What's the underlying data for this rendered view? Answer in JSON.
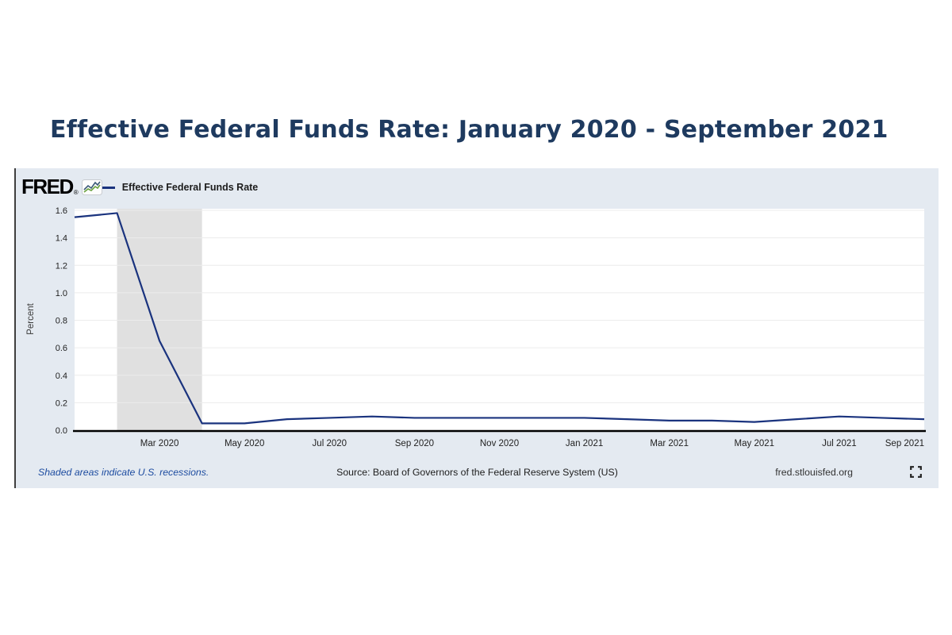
{
  "page": {
    "title": "Effective Federal Funds Rate: January 2020 - September 2021"
  },
  "brand": {
    "logo_text": "FRED",
    "registered_mark": "®"
  },
  "footer": {
    "recession_note": "Shaded areas indicate U.S. recessions.",
    "source": "Source: Board of Governors of the Federal Reserve System (US)",
    "link": "fred.stlouisfed.org"
  },
  "colors": {
    "title_text": "#1e3a5f",
    "series_line": "#1a337e",
    "chart_background": "#e4eaf1",
    "plot_background": "#ffffff",
    "recession_shading": "#e0e0e0",
    "gridline": "#ececec",
    "axis_line": "#000000",
    "tick_text": "#222222",
    "note_text": "#1d4ca0",
    "logo_sparkline_green": "#6aa23f",
    "logo_sparkline_blue": "#3c5a78"
  },
  "chart_data": {
    "type": "line",
    "title": "Effective Federal Funds Rate: January 2020 - September 2021",
    "xlabel": "",
    "ylabel": "Percent",
    "ylim": [
      0,
      1.6
    ],
    "yticks": [
      0.0,
      0.2,
      0.4,
      0.6,
      0.8,
      1.0,
      1.2,
      1.4,
      1.6
    ],
    "grid": "horizontal",
    "legend_position": "top-left",
    "categories": [
      "Jan 2020",
      "Feb 2020",
      "Mar 2020",
      "Apr 2020",
      "May 2020",
      "Jun 2020",
      "Jul 2020",
      "Aug 2020",
      "Sep 2020",
      "Oct 2020",
      "Nov 2020",
      "Dec 2020",
      "Jan 2021",
      "Feb 2021",
      "Mar 2021",
      "Apr 2021",
      "May 2021",
      "Jun 2021",
      "Jul 2021",
      "Aug 2021",
      "Sep 2021"
    ],
    "xtick_indices": [
      2,
      4,
      6,
      8,
      10,
      12,
      14,
      16,
      18,
      20
    ],
    "series": [
      {
        "name": "Effective Federal Funds Rate",
        "values": [
          1.55,
          1.58,
          0.65,
          0.05,
          0.05,
          0.08,
          0.09,
          0.1,
          0.09,
          0.09,
          0.09,
          0.09,
          0.09,
          0.08,
          0.07,
          0.07,
          0.06,
          0.08,
          0.1,
          0.09,
          0.08
        ]
      }
    ],
    "recession_band": {
      "start_category": "Feb 2020",
      "end_category": "Apr 2020",
      "note": "Shaded areas indicate U.S. recessions."
    }
  }
}
